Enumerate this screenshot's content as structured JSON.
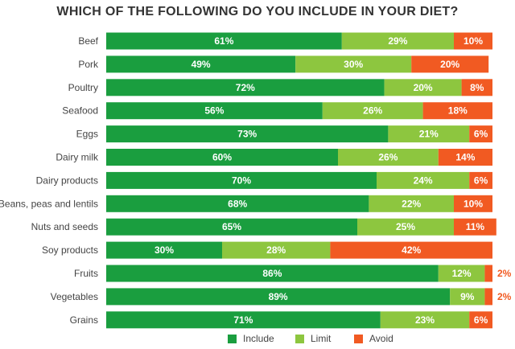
{
  "chart_data": {
    "type": "bar",
    "orientation": "horizontal",
    "stacked": true,
    "title": "WHICH OF THE FOLLOWING DO YOU INCLUDE IN YOUR DIET?",
    "xlim": [
      0,
      100
    ],
    "grid": false,
    "legend_position": "bottom",
    "categories": [
      "Beef",
      "Pork",
      "Poultry",
      "Seafood",
      "Eggs",
      "Dairy milk",
      "Dairy products",
      "Beans, peas and lentils",
      "Nuts and seeds",
      "Soy products",
      "Fruits",
      "Vegetables",
      "Grains"
    ],
    "series": [
      {
        "name": "Include",
        "color": "#1a9e3f",
        "values": [
          61,
          49,
          72,
          56,
          73,
          60,
          70,
          68,
          65,
          30,
          86,
          89,
          71
        ],
        "labels": [
          "61%",
          "49%",
          "72%",
          "56%",
          "73%",
          "60%",
          "70%",
          "68%",
          "65%",
          "30%",
          "86%",
          "89%",
          "71%"
        ]
      },
      {
        "name": "Limit",
        "color": "#8dc63f",
        "values": [
          29,
          30,
          20,
          26,
          21,
          26,
          24,
          22,
          25,
          28,
          12,
          9,
          23
        ],
        "labels": [
          "29%",
          "30%",
          "20%",
          "26%",
          "21%",
          "26%",
          "24%",
          "22%",
          "25%",
          "28%",
          "12%",
          "9%",
          "23%"
        ]
      },
      {
        "name": "Avoid",
        "color": "#f15a22",
        "values": [
          10,
          20,
          8,
          18,
          6,
          14,
          6,
          10,
          11,
          42,
          2,
          2,
          6
        ],
        "labels": [
          "10%",
          "20%",
          "8%",
          "18%",
          "6%",
          "14%",
          "6%",
          "10%",
          "11%",
          "42%",
          "2%",
          "2%",
          "6%"
        ]
      }
    ]
  }
}
